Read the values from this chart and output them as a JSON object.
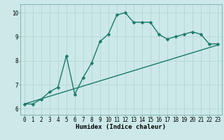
{
  "xlabel": "Humidex (Indice chaleur)",
  "bg_color": "#cce8e8",
  "grid_color": "#b8d8d8",
  "line_color": "#1a7a6a",
  "xlim": [
    -0.5,
    23.5
  ],
  "ylim": [
    5.75,
    10.35
  ],
  "xticks": [
    0,
    1,
    2,
    3,
    4,
    5,
    6,
    7,
    8,
    9,
    10,
    11,
    12,
    13,
    14,
    15,
    16,
    17,
    18,
    19,
    20,
    21,
    22,
    23
  ],
  "yticks": [
    6,
    7,
    8,
    9,
    10
  ],
  "curve1_x": [
    0,
    1,
    2,
    3,
    4,
    5,
    6,
    7,
    8,
    9,
    10,
    11,
    12,
    13,
    14,
    15,
    16,
    17,
    18,
    19,
    20,
    21,
    22,
    23
  ],
  "curve1_y": [
    6.2,
    6.2,
    6.4,
    6.7,
    6.9,
    8.2,
    6.6,
    7.3,
    7.9,
    8.8,
    9.1,
    9.9,
    10.0,
    9.6,
    9.6,
    9.6,
    9.1,
    8.9,
    9.0,
    9.1,
    9.2,
    9.1,
    8.7,
    8.7
  ],
  "curve2_x": [
    0,
    23
  ],
  "curve2_y": [
    6.2,
    8.65
  ],
  "markersize": 2.5,
  "linewidth": 1.0,
  "axis_fontsize": 6.5,
  "tick_fontsize": 5.5
}
